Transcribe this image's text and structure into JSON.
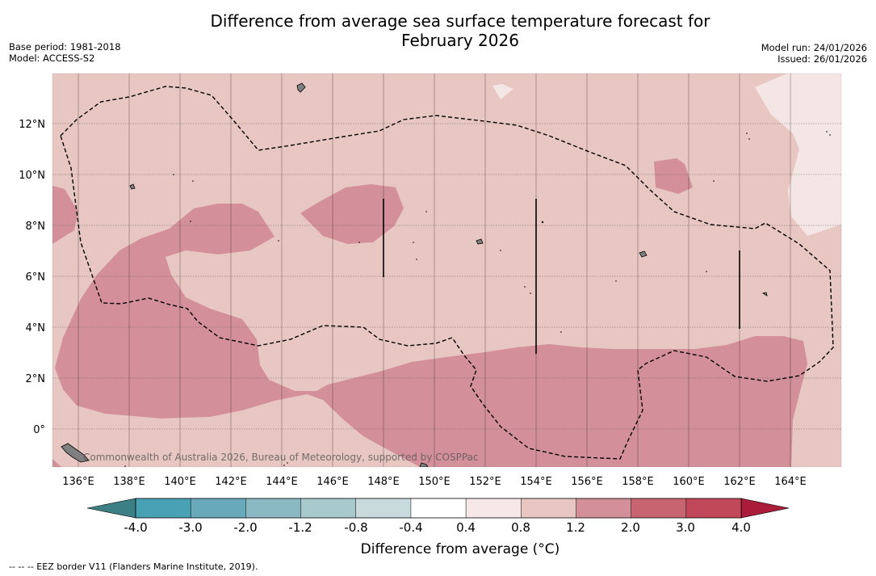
{
  "header": {
    "title_line1": "Difference from average sea surface temperature forecast for",
    "title_line2": "February 2026",
    "base_period": "Base period: 1981-2018",
    "model": "Model: ACCESS-S2",
    "model_run": "Model run: 24/01/2026",
    "issued": "Issued: 26/01/2026"
  },
  "map": {
    "credit": "Commonwealth of Australia 2026, Bureau of Meteorology, supported by COSPPac",
    "lon_labels": [
      "136°E",
      "138°E",
      "140°E",
      "142°E",
      "144°E",
      "146°E",
      "148°E",
      "150°E",
      "152°E",
      "154°E",
      "156°E",
      "158°E",
      "160°E",
      "162°E",
      "164°E"
    ],
    "lat_labels": [
      "12°N",
      "10°N",
      "8°N",
      "6°N",
      "4°N",
      "2°N",
      "0°"
    ],
    "colors": {
      "ocean_default": "#e8c6c2",
      "warm_anomaly": "#d4909a",
      "cool_anomaly": "#f4e6e4",
      "land": "#808080"
    }
  },
  "colorbar": {
    "label": "Difference from average (°C)",
    "ticks": [
      "-4.0",
      "-3.0",
      "-2.0",
      "-1.2",
      "-0.8",
      "-0.4",
      "0.4",
      "0.8",
      "1.2",
      "2.0",
      "3.0",
      "4.0"
    ],
    "colors": [
      "#408990",
      "#49a2b4",
      "#68aabb",
      "#8ab9c4",
      "#a9cacc",
      "#c8dadc",
      "#ffffff",
      "#f6e8e6",
      "#e8c6c2",
      "#d4909a",
      "#c86470",
      "#c04858"
    ],
    "extend_low_color": "#3c7f84",
    "extend_high_color": "#aa1c3a"
  },
  "footnote": "--  --  -- EEZ border V11 (Flanders Marine Institute, 2019)."
}
